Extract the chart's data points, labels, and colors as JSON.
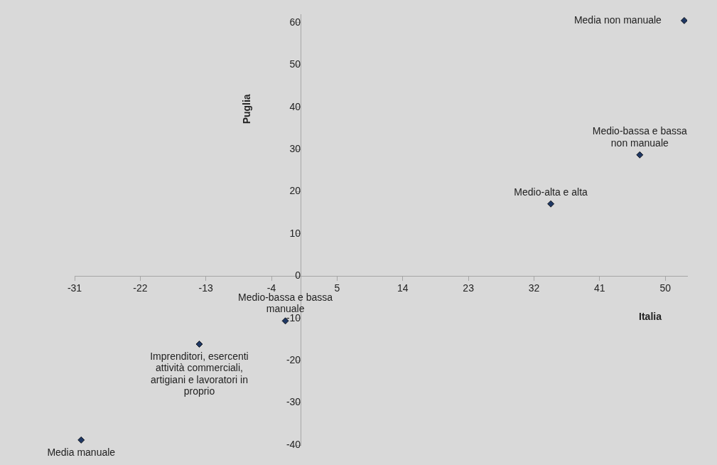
{
  "chart_data": {
    "type": "scatter",
    "xlabel": "Italia",
    "ylabel": "Puglia",
    "series": [
      {
        "color": "#1f3864",
        "x": [
          52.6,
          46.5,
          34.3,
          -2.1,
          -13.9,
          -30.1
        ],
        "values": [
          60.5,
          28.7,
          17.1,
          -10.6,
          -16.1,
          -38.8
        ]
      }
    ],
    "annotations": [
      {
        "text": "Media non manuale",
        "x": 52.6,
        "y": 60.5
      },
      {
        "text": "Medio-bassa e bassa non manuale",
        "x": 46.5,
        "y": 28.7
      },
      {
        "text": "Medio-alta e alta",
        "x": 34.3,
        "y": 17.1
      },
      {
        "text": "Medio-bassa e bassa manuale",
        "x": -2.1,
        "y": -10.6
      },
      {
        "text": "Imprenditori, esercenti attività commerciali, artigiani e lavoratori in proprio",
        "x": -13.9,
        "y": -16.1
      },
      {
        "text": "Media manuale",
        "x": -30.1,
        "y": -38.8
      }
    ],
    "xlim": [
      -31,
      53
    ],
    "xticks": [
      -31,
      -22,
      -13,
      -4,
      5,
      14,
      23,
      32,
      41,
      50
    ],
    "ylim": [
      -40,
      62
    ],
    "yticks": [
      -40,
      -30,
      -20,
      -10,
      0,
      10,
      20,
      30,
      40,
      50,
      60
    ],
    "marker": "diamond",
    "grid": false,
    "legend": false
  }
}
